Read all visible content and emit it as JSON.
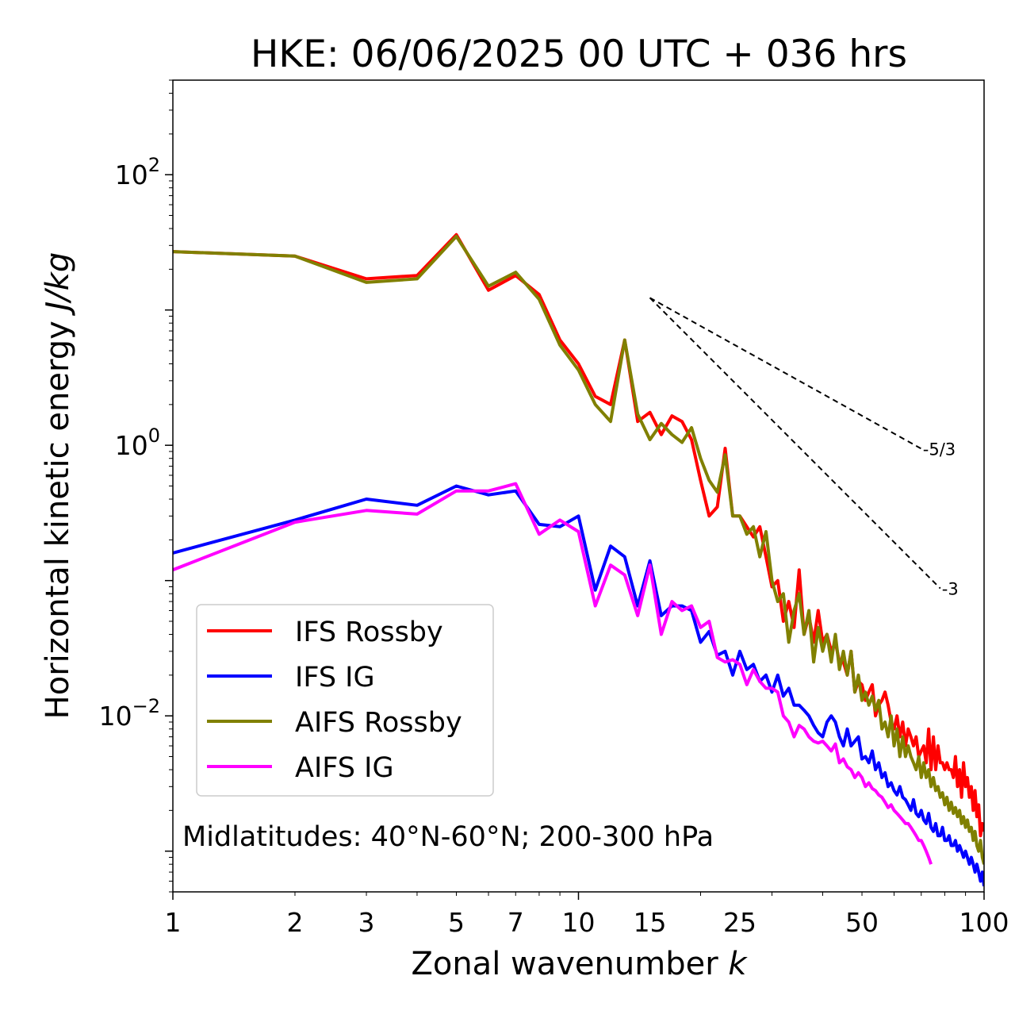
{
  "chart_data": {
    "type": "line",
    "title": "HKE: 06/06/2025 00 UTC + 036 hrs",
    "xlabel_text": "Zonal wavenumber ",
    "xlabel_var": "k",
    "ylabel_text": "Horizontal kinetic energy ",
    "ylabel_unit": "J/kg",
    "x_scale": "log",
    "y_scale": "log",
    "xlim": [
      1,
      100
    ],
    "ylim": [
      0.0005,
      500
    ],
    "x_ticks": [
      {
        "value": 1,
        "label": "1"
      },
      {
        "value": 2,
        "label": "2"
      },
      {
        "value": 3,
        "label": "3"
      },
      {
        "value": 5,
        "label": "5"
      },
      {
        "value": 7,
        "label": "7"
      },
      {
        "value": 10,
        "label": "10"
      },
      {
        "value": 15,
        "label": "15"
      },
      {
        "value": 25,
        "label": "25"
      },
      {
        "value": 50,
        "label": "50"
      },
      {
        "value": 100,
        "label": "100"
      }
    ],
    "y_ticks": [
      {
        "value": 0.01,
        "base": "10",
        "exp": "−2"
      },
      {
        "value": 1,
        "base": "10",
        "exp": "0"
      },
      {
        "value": 100,
        "base": "10",
        "exp": "2"
      }
    ],
    "grid": false,
    "legend_placement": "lower-left",
    "annotation": "Midlatitudes: 40°N-60°N; 200-300 hPa",
    "reference_lines": [
      {
        "label": "-5/3",
        "slope": -1.6667,
        "x_start": 15,
        "x_end": 70,
        "y_start": 12.3
      },
      {
        "label": "-3",
        "slope": -3,
        "x_start": 15,
        "x_end": 78,
        "y_start": 12.3
      }
    ],
    "series": [
      {
        "name": "IFS Rossby",
        "color": "#ff0000",
        "x": [
          1,
          2,
          3,
          4,
          5,
          6,
          7,
          8,
          9,
          10,
          11,
          12,
          13,
          14,
          15,
          16,
          17,
          18,
          19,
          20,
          21,
          22,
          23,
          24,
          25,
          26,
          27,
          28,
          29,
          30,
          31,
          32,
          33,
          34,
          35,
          36,
          37,
          38,
          39,
          40,
          41,
          42,
          43,
          44,
          45,
          46,
          47,
          48,
          49,
          50,
          51,
          52,
          53,
          54,
          55,
          56,
          57,
          58,
          59,
          60,
          61,
          62,
          63,
          64,
          65,
          66,
          67,
          68,
          69,
          70,
          71,
          72,
          73,
          74,
          75,
          76,
          77,
          78,
          79,
          80,
          81,
          82,
          83,
          84,
          85,
          86,
          87,
          88,
          89,
          90,
          91,
          92,
          93,
          94,
          95,
          96,
          97,
          98,
          99,
          100
        ],
        "y": [
          27,
          25,
          17,
          18,
          36,
          14,
          18,
          13,
          6,
          4,
          2.3,
          2,
          6,
          1.5,
          1.75,
          1.2,
          1.65,
          1.5,
          1.1,
          0.55,
          0.3,
          0.35,
          0.95,
          0.3,
          0.3,
          0.25,
          0.21,
          0.25,
          0.15,
          0.09,
          0.1,
          0.05,
          0.07,
          0.045,
          0.12,
          0.04,
          0.055,
          0.035,
          0.06,
          0.035,
          0.04,
          0.03,
          0.035,
          0.025,
          0.025,
          0.02,
          0.03,
          0.015,
          0.018,
          0.017,
          0.013,
          0.015,
          0.017,
          0.01,
          0.012,
          0.013,
          0.015,
          0.012,
          0.009,
          0.008,
          0.01,
          0.007,
          0.009,
          0.006,
          0.008,
          0.007,
          0.006,
          0.007,
          0.005,
          0.0055,
          0.006,
          0.0045,
          0.008,
          0.004,
          0.007,
          0.004,
          0.006,
          0.0045,
          0.0045,
          0.004,
          0.0045,
          0.004,
          0.004,
          0.0035,
          0.005,
          0.003,
          0.004,
          0.0025,
          0.0045,
          0.003,
          0.0035,
          0.0025,
          0.003,
          0.002,
          0.0028,
          0.0018,
          0.0022,
          0.0013,
          0.0016,
          0.0014
        ]
      },
      {
        "name": "IFS IG",
        "color": "#0000ff",
        "x": [
          1,
          2,
          3,
          4,
          5,
          6,
          7,
          8,
          9,
          10,
          11,
          12,
          13,
          14,
          15,
          16,
          17,
          18,
          19,
          20,
          21,
          22,
          23,
          24,
          25,
          26,
          27,
          28,
          29,
          30,
          31,
          32,
          33,
          34,
          35,
          36,
          37,
          38,
          39,
          40,
          41,
          42,
          43,
          44,
          45,
          46,
          47,
          48,
          49,
          50,
          51,
          52,
          53,
          54,
          55,
          56,
          57,
          58,
          59,
          60,
          61,
          62,
          63,
          64,
          65,
          66,
          67,
          68,
          69,
          70,
          71,
          72,
          73,
          74,
          75,
          76,
          77,
          78,
          79,
          80,
          81,
          82,
          83,
          84,
          85,
          86,
          87,
          88,
          89,
          90,
          91,
          92,
          93,
          94,
          95,
          96,
          97,
          98,
          99,
          100
        ],
        "y": [
          0.16,
          0.28,
          0.4,
          0.36,
          0.5,
          0.43,
          0.46,
          0.26,
          0.25,
          0.3,
          0.085,
          0.18,
          0.15,
          0.065,
          0.14,
          0.055,
          0.065,
          0.065,
          0.06,
          0.035,
          0.042,
          0.028,
          0.03,
          0.02,
          0.03,
          0.022,
          0.024,
          0.018,
          0.02,
          0.015,
          0.02,
          0.014,
          0.016,
          0.012,
          0.012,
          0.011,
          0.01,
          0.0085,
          0.0075,
          0.007,
          0.009,
          0.01,
          0.009,
          0.007,
          0.006,
          0.008,
          0.006,
          0.0065,
          0.007,
          0.0048,
          0.005,
          0.0045,
          0.0055,
          0.004,
          0.0045,
          0.0035,
          0.0038,
          0.003,
          0.0032,
          0.0028,
          0.0026,
          0.003,
          0.0025,
          0.0024,
          0.0022,
          0.002,
          0.0024,
          0.0019,
          0.0018,
          0.002,
          0.0017,
          0.0016,
          0.0019,
          0.0015,
          0.0014,
          0.0016,
          0.0013,
          0.0013,
          0.0015,
          0.0012,
          0.0012,
          0.0013,
          0.0011,
          0.0011,
          0.0012,
          0.001,
          0.0011,
          0.001,
          0.0009,
          0.001,
          0.0009,
          0.0008,
          0.0009,
          0.0008,
          0.0007,
          0.0008,
          0.0007,
          0.0006,
          0.0007,
          0.00055
        ]
      },
      {
        "name": "AIFS Rossby",
        "color": "#808000",
        "x": [
          1,
          2,
          3,
          4,
          5,
          6,
          7,
          8,
          9,
          10,
          11,
          12,
          13,
          14,
          15,
          16,
          17,
          18,
          19,
          20,
          21,
          22,
          23,
          24,
          25,
          26,
          27,
          28,
          29,
          30,
          31,
          32,
          33,
          34,
          35,
          36,
          37,
          38,
          39,
          40,
          41,
          42,
          43,
          44,
          45,
          46,
          47,
          48,
          49,
          50,
          51,
          52,
          53,
          54,
          55,
          56,
          57,
          58,
          59,
          60,
          61,
          62,
          63,
          64,
          65,
          66,
          67,
          68,
          69,
          70,
          71,
          72,
          73,
          74,
          75,
          76,
          77,
          78,
          79,
          80,
          81,
          82,
          83,
          84,
          85,
          86,
          87,
          88,
          89,
          90,
          91,
          92,
          93,
          94,
          95,
          96,
          97,
          98,
          99,
          100
        ],
        "y": [
          27,
          25,
          16,
          17,
          35,
          15,
          19,
          12,
          5.5,
          3.6,
          2,
          1.5,
          6,
          1.7,
          1.1,
          1.45,
          1.2,
          1.05,
          1.35,
          0.8,
          0.55,
          0.45,
          0.85,
          0.3,
          0.3,
          0.22,
          0.25,
          0.15,
          0.23,
          0.1,
          0.07,
          0.08,
          0.035,
          0.06,
          0.08,
          0.04,
          0.06,
          0.025,
          0.045,
          0.03,
          0.04,
          0.025,
          0.04,
          0.022,
          0.03,
          0.02,
          0.03,
          0.015,
          0.02,
          0.013,
          0.015,
          0.012,
          0.014,
          0.011,
          0.013,
          0.008,
          0.009,
          0.007,
          0.01,
          0.006,
          0.008,
          0.005,
          0.007,
          0.005,
          0.006,
          0.005,
          0.0045,
          0.004,
          0.005,
          0.0035,
          0.0045,
          0.0035,
          0.004,
          0.003,
          0.0035,
          0.0028,
          0.003,
          0.0025,
          0.0027,
          0.0022,
          0.0025,
          0.002,
          0.0023,
          0.0019,
          0.0021,
          0.0018,
          0.002,
          0.0016,
          0.0018,
          0.0015,
          0.0017,
          0.0014,
          0.0015,
          0.0012,
          0.0014,
          0.0011,
          0.001,
          0.0012,
          0.0009,
          0.0008
        ]
      },
      {
        "name": "AIFS IG",
        "color": "#ff00ff",
        "x": [
          1,
          2,
          3,
          4,
          5,
          6,
          7,
          8,
          9,
          10,
          11,
          12,
          13,
          14,
          15,
          16,
          17,
          18,
          19,
          20,
          21,
          22,
          23,
          24,
          25,
          26,
          27,
          28,
          29,
          30,
          31,
          32,
          33,
          34,
          35,
          36,
          37,
          38,
          39,
          40,
          41,
          42,
          43,
          44,
          45,
          46,
          47,
          48,
          49,
          50,
          51,
          52,
          53,
          54,
          55,
          56,
          57,
          58,
          59,
          60,
          61,
          62,
          63,
          64,
          65,
          66,
          67,
          68,
          69,
          70,
          71,
          72,
          73,
          74
        ],
        "y": [
          0.12,
          0.27,
          0.33,
          0.31,
          0.46,
          0.46,
          0.52,
          0.22,
          0.28,
          0.23,
          0.065,
          0.13,
          0.11,
          0.055,
          0.13,
          0.04,
          0.07,
          0.06,
          0.065,
          0.045,
          0.05,
          0.027,
          0.025,
          0.026,
          0.024,
          0.017,
          0.022,
          0.018,
          0.016,
          0.016,
          0.015,
          0.01,
          0.009,
          0.007,
          0.0085,
          0.008,
          0.007,
          0.0065,
          0.0063,
          0.0065,
          0.006,
          0.0055,
          0.0062,
          0.0045,
          0.0048,
          0.0042,
          0.004,
          0.0035,
          0.0038,
          0.0035,
          0.003,
          0.0032,
          0.0029,
          0.0028,
          0.0026,
          0.0025,
          0.0023,
          0.0021,
          0.0022,
          0.002,
          0.0019,
          0.0018,
          0.0017,
          0.0016,
          0.0016,
          0.0015,
          0.0014,
          0.0013,
          0.0012,
          0.0012,
          0.0011,
          0.001,
          0.0009,
          0.0008
        ]
      }
    ]
  }
}
